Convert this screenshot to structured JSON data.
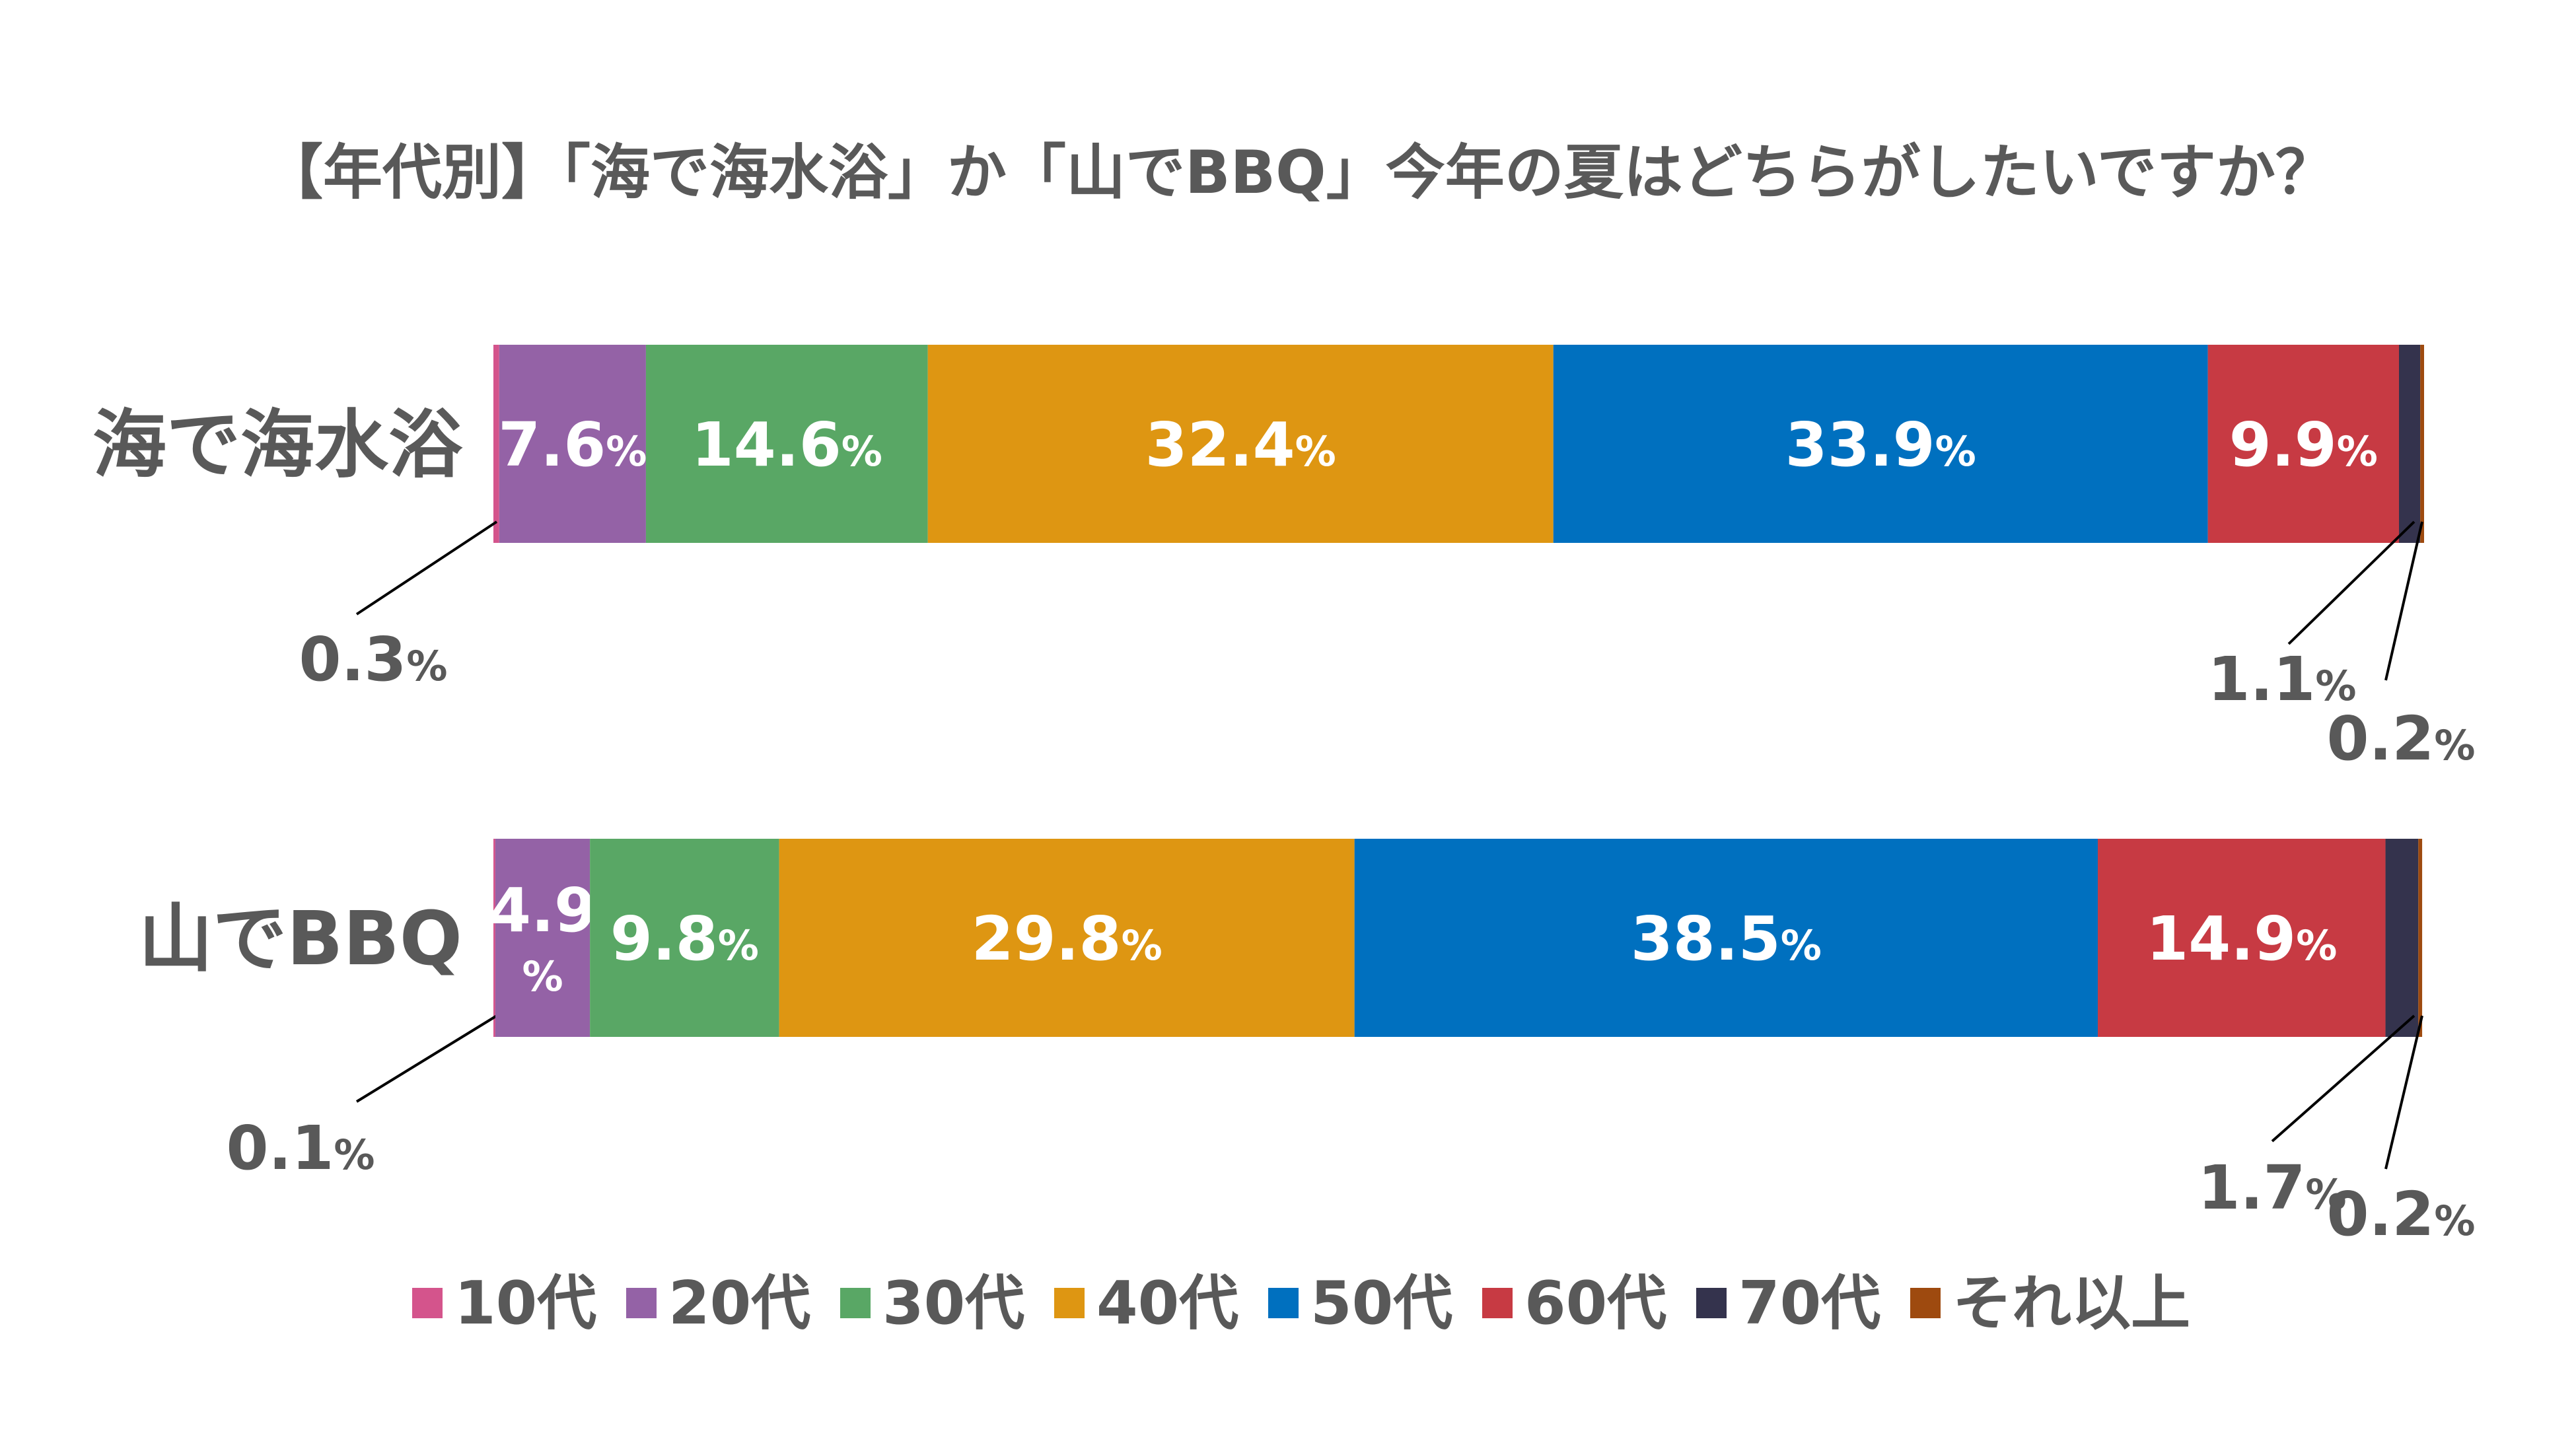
{
  "chart_data": {
    "type": "bar",
    "orientation": "horizontal",
    "stacked": "percent",
    "title": "【年代別】「海で海水浴」か「山でBBQ」今年の夏はどちらがしたいですか？",
    "categories": [
      "海で海水浴",
      "山でBBQ"
    ],
    "unit": "%",
    "series": [
      {
        "name": "10代",
        "color": "#d4548c",
        "values": [
          0.3,
          0.1
        ]
      },
      {
        "name": "20代",
        "color": "#9462a6",
        "values": [
          7.6,
          4.9
        ]
      },
      {
        "name": "30代",
        "color": "#59a765",
        "values": [
          14.6,
          9.8
        ]
      },
      {
        "name": "40代",
        "color": "#de9612",
        "values": [
          32.4,
          29.8
        ]
      },
      {
        "name": "50代",
        "color": "#0070bf",
        "values": [
          33.9,
          38.5
        ]
      },
      {
        "name": "60代",
        "color": "#c73a43",
        "values": [
          9.9,
          14.9
        ]
      },
      {
        "name": "70代",
        "color": "#34334d",
        "values": [
          1.1,
          1.7
        ]
      },
      {
        "name": "それ以上",
        "color": "#9e4a0f",
        "values": [
          0.2,
          0.2
        ]
      }
    ],
    "legend_position": "bottom",
    "grid": false,
    "xlim": [
      0,
      100
    ]
  }
}
